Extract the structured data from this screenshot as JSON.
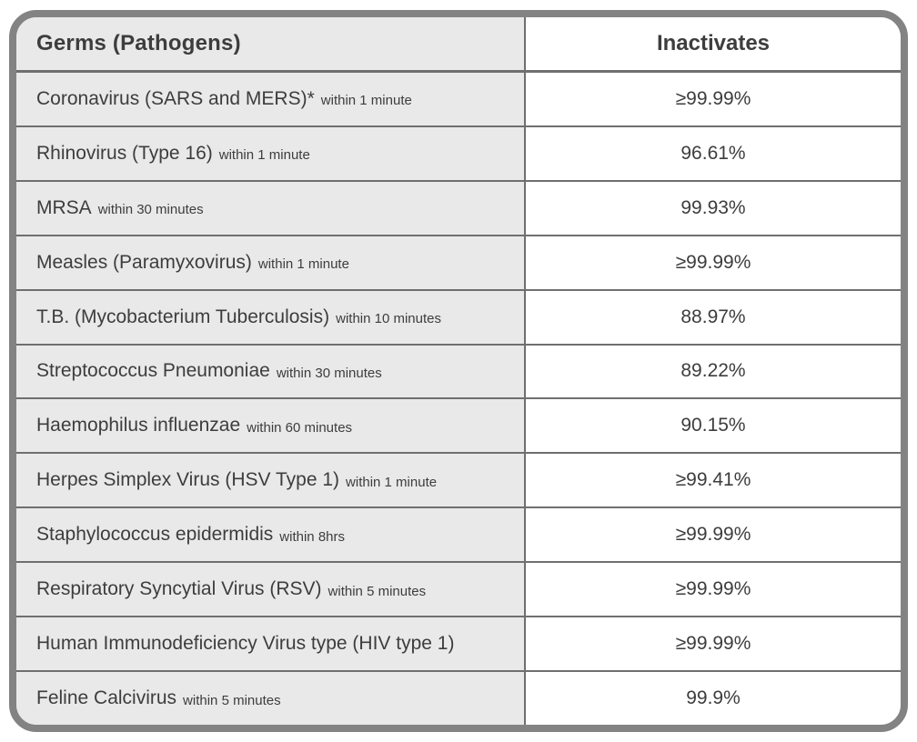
{
  "chart_data": {
    "type": "table",
    "title": "Germ inactivation table",
    "columns": [
      "Germs (Pathogens)",
      "Inactivates"
    ],
    "rows": [
      {
        "name": "Coronavirus (SARS and MERS)*",
        "time": "within 1 minute",
        "value": "≥99.99%"
      },
      {
        "name": "Rhinovirus (Type 16)",
        "time": "within 1 minute",
        "value": "96.61%"
      },
      {
        "name": "MRSA",
        "time": "within 30 minutes",
        "value": "99.93%"
      },
      {
        "name": "Measles (Paramyxovirus)",
        "time": "within 1 minute",
        "value": "≥99.99%"
      },
      {
        "name": "T.B. (Mycobacterium Tuberculosis)",
        "time": "within 10 minutes",
        "value": "88.97%"
      },
      {
        "name": "Streptococcus Pneumoniae",
        "time": "within 30 minutes",
        "value": "89.22%"
      },
      {
        "name": "Haemophilus influenzae",
        "time": "within 60 minutes",
        "value": "90.15%"
      },
      {
        "name": "Herpes Simplex Virus (HSV Type 1)",
        "time": "within 1 minute",
        "value": "≥99.41%"
      },
      {
        "name": "Staphylococcus epidermidis",
        "time": "within 8hrs",
        "value": "≥99.99%"
      },
      {
        "name": "Respiratory Syncytial Virus (RSV)",
        "time": "within 5 minutes",
        "value": "≥99.99%"
      },
      {
        "name": "Human Immunodeficiency Virus type (HIV type 1)",
        "time": "",
        "value": "≥99.99%"
      },
      {
        "name": "Feline Calcivirus",
        "time": "within 5 minutes",
        "value": "99.9%"
      }
    ]
  },
  "colors": {
    "border": "#838383",
    "line": "#6f6f6f",
    "left_bg": "#e9e9e9",
    "text": "#3d3d3d"
  }
}
